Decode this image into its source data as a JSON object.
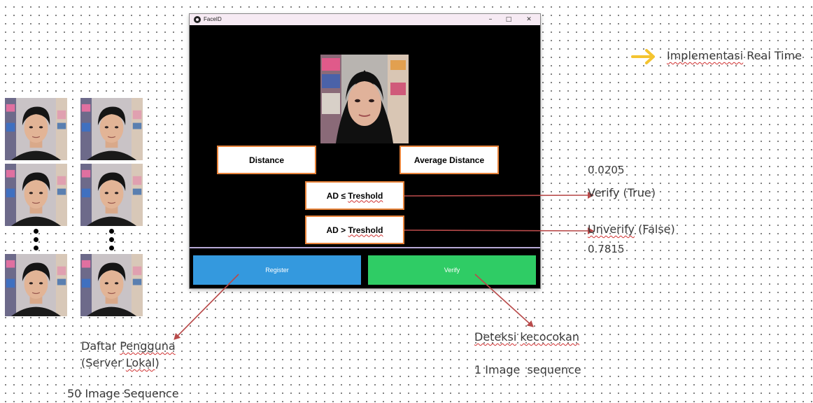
{
  "window": {
    "title": "FaceID",
    "controls": {
      "minimize": "–",
      "maximize": "□",
      "close": "✕"
    }
  },
  "boxes": {
    "distance": "Distance",
    "average_distance": "Average Distance",
    "ad_le_prefix": "AD ≤ ",
    "ad_le_word": "Treshold",
    "ad_gt_prefix": "AD > ",
    "ad_gt_word": "Treshold"
  },
  "buttons": {
    "register": "Register",
    "verify": "Verify"
  },
  "annotations": {
    "implementasi_word": "Implementasi",
    "implementasi_rest": " Real Time",
    "value_true": "0.0205",
    "verify_true": "Verify (True)",
    "unverify_word": "Unverify",
    "unverify_rest": " (False)",
    "value_false": "0.7815",
    "daftar_prefix": "Daftar ",
    "daftar_word": "Pengguna",
    "server_prefix": "(Server ",
    "server_word": "Lokal",
    "server_suffix": ")",
    "sequence_50": "50 Image Sequence",
    "deteksi_word": "Deteksi",
    "deteksi_space": " ",
    "kecocokan_word": "kecocokan",
    "sequence_1": "1 Image  sequence"
  },
  "colors": {
    "register_button": "#3499de",
    "verify_button": "#2fcc65",
    "box_border": "#e8833a",
    "arrow": "#b84a4a",
    "accent_arrow": "#f4c430"
  },
  "icons": [
    "faceid-app-icon",
    "minimize-icon",
    "maximize-icon",
    "close-icon",
    "arrow-right-icon"
  ]
}
